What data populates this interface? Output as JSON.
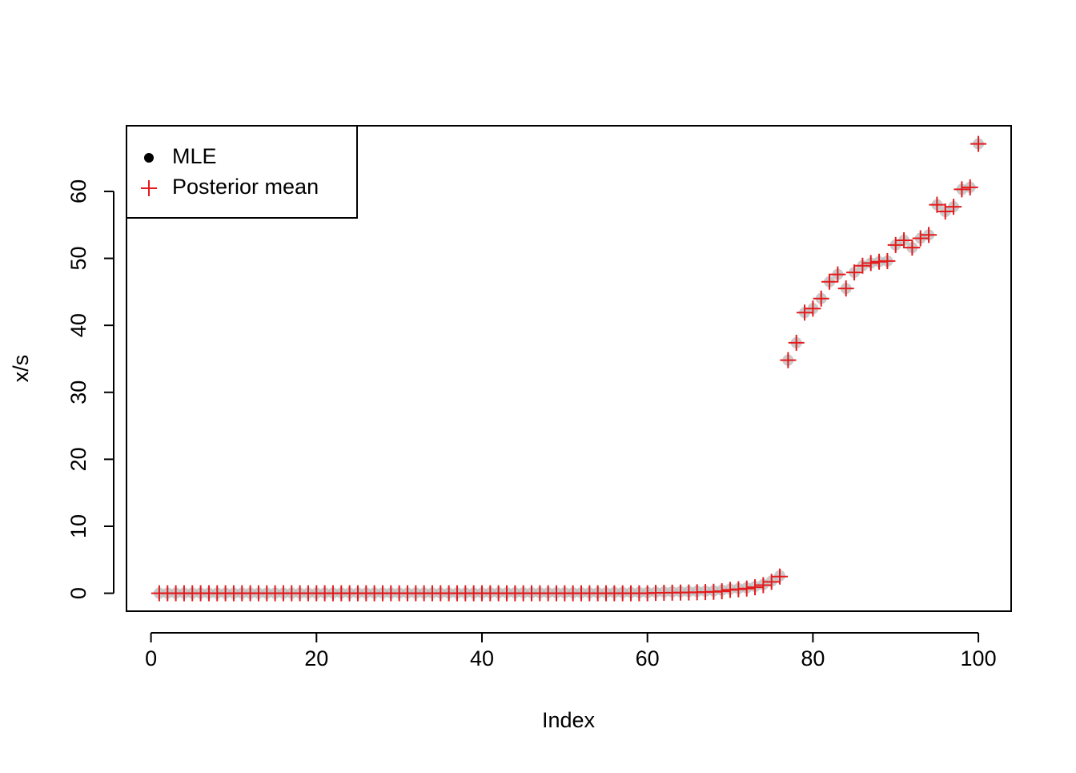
{
  "chart_data": {
    "type": "scatter",
    "x_label": "Index",
    "y_label": "x/s",
    "x": [
      1,
      2,
      3,
      4,
      5,
      6,
      7,
      8,
      9,
      10,
      11,
      12,
      13,
      14,
      15,
      16,
      17,
      18,
      19,
      20,
      21,
      22,
      23,
      24,
      25,
      26,
      27,
      28,
      29,
      30,
      31,
      32,
      33,
      34,
      35,
      36,
      37,
      38,
      39,
      40,
      41,
      42,
      43,
      44,
      45,
      46,
      47,
      48,
      49,
      50,
      51,
      52,
      53,
      54,
      55,
      56,
      57,
      58,
      59,
      60,
      61,
      62,
      63,
      64,
      65,
      66,
      67,
      68,
      69,
      70,
      71,
      72,
      73,
      74,
      75,
      76,
      77,
      78,
      79,
      80,
      81,
      82,
      83,
      84,
      85,
      86,
      87,
      88,
      89,
      90,
      91,
      92,
      93,
      94,
      95,
      96,
      97,
      98,
      99,
      100
    ],
    "series": [
      {
        "name": "MLE",
        "color": "#bdbdbd",
        "legend_color": "#000000",
        "marker": "circle",
        "values": [
          0.01,
          0.01,
          0.01,
          0.01,
          0.01,
          0.01,
          0.01,
          0.01,
          0.01,
          0.01,
          0.01,
          0.01,
          0.01,
          0.01,
          0.01,
          0.01,
          0.01,
          0.01,
          0.01,
          0.01,
          0.03,
          0.03,
          0.03,
          0.03,
          0.03,
          0.03,
          0.03,
          0.03,
          0.03,
          0.03,
          0.03,
          0.03,
          0.03,
          0.03,
          0.03,
          0.03,
          0.03,
          0.03,
          0.03,
          0.03,
          0.06,
          0.06,
          0.06,
          0.06,
          0.06,
          0.06,
          0.06,
          0.06,
          0.06,
          0.06,
          0.06,
          0.06,
          0.06,
          0.06,
          0.06,
          0.1,
          0.1,
          0.1,
          0.1,
          0.1,
          0.15,
          0.18,
          0.2,
          0.22,
          0.25,
          0.28,
          0.3,
          0.35,
          0.45,
          0.6,
          0.7,
          0.8,
          1.0,
          1.3,
          1.8,
          2.6,
          34.8,
          37.4,
          41.9,
          42.5,
          44.0,
          46.5,
          47.6,
          45.5,
          47.9,
          48.9,
          49.3,
          49.5,
          49.6,
          52.0,
          52.7,
          51.6,
          53.0,
          53.5,
          58.0,
          57.0,
          57.7,
          60.3,
          60.6,
          67.1
        ]
      },
      {
        "name": "Posterior mean",
        "color": "#e41a1c",
        "marker": "plus",
        "values": [
          0,
          0,
          0,
          0,
          0,
          0,
          0,
          0,
          0,
          0,
          0,
          0,
          0,
          0,
          0,
          0,
          0,
          0,
          0,
          0,
          0,
          0,
          0,
          0,
          0,
          0,
          0,
          0,
          0,
          0,
          0,
          0,
          0,
          0,
          0,
          0,
          0,
          0,
          0,
          0,
          0,
          0,
          0,
          0,
          0,
          0,
          0,
          0,
          0,
          0,
          0,
          0,
          0,
          0,
          0,
          0,
          0,
          0,
          0,
          0,
          0.05,
          0.07,
          0.08,
          0.1,
          0.12,
          0.15,
          0.18,
          0.22,
          0.3,
          0.5,
          0.6,
          0.7,
          0.9,
          1.2,
          1.7,
          2.5,
          34.8,
          37.4,
          41.9,
          42.5,
          44.0,
          46.5,
          47.6,
          45.5,
          47.9,
          48.9,
          49.3,
          49.5,
          49.6,
          52.0,
          52.7,
          51.6,
          53.0,
          53.5,
          58.0,
          57.0,
          57.7,
          60.3,
          60.6,
          67.1
        ]
      }
    ],
    "xlim": [
      -2.96,
      103.96
    ],
    "xticks": [
      0,
      20,
      40,
      60,
      80,
      100
    ],
    "ylim": [
      -2.68,
      69.8
    ],
    "yticks": [
      0,
      10,
      20,
      30,
      40,
      50,
      60
    ],
    "legend": "topleft"
  }
}
